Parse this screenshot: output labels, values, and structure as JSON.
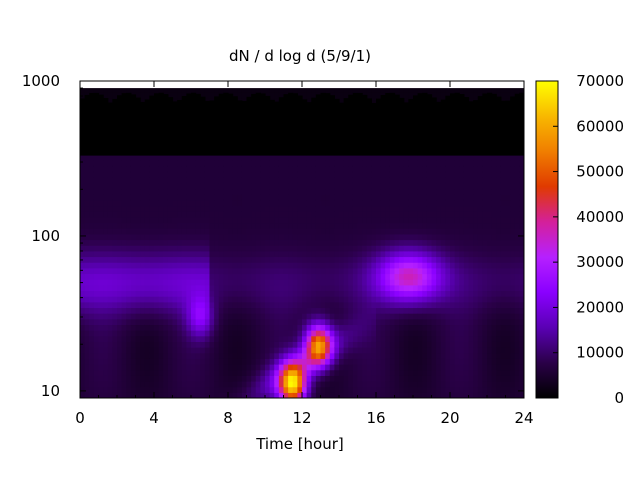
{
  "chart_data": {
    "type": "heatmap",
    "title": "dN / d log d (5/9/1)",
    "xlabel": "Time [hour]",
    "ylabel": "",
    "x_ticks": [
      "0",
      "4",
      "8",
      "12",
      "16",
      "20",
      "24"
    ],
    "y_ticks": [
      "10",
      "100",
      "1000"
    ],
    "xlim": [
      0,
      24
    ],
    "ylim": [
      9,
      1000
    ],
    "y_scale": "log",
    "colorbar": {
      "min": 0,
      "max": 70000,
      "ticks": [
        "0",
        "10000",
        "20000",
        "30000",
        "40000",
        "50000",
        "60000",
        "70000"
      ],
      "colormap": [
        "#000000",
        "#2a0048",
        "#5a00b4",
        "#8a00ff",
        "#b620ff",
        "#d4209a",
        "#e03a00",
        "#f07e00",
        "#f8b800",
        "#ffff00"
      ]
    },
    "grid": false,
    "features": [
      {
        "description": "broad background",
        "time_range": [
          0,
          24
        ],
        "diameter_range": [
          10,
          350
        ],
        "value": 6000
      },
      {
        "description": "band near 50 nm morning",
        "time_range": [
          0,
          6
        ],
        "diameter_range": [
          30,
          100
        ],
        "value": 12000
      },
      {
        "description": "small peak around 6.5 h",
        "time": 6.5,
        "diameter": 30,
        "value": 14000
      },
      {
        "description": "growth event peak",
        "time": 11.5,
        "diameter": 11,
        "value": 55000
      },
      {
        "description": "secondary peak",
        "time": 12.9,
        "diameter": 20,
        "value": 45000
      },
      {
        "description": "grown mode",
        "time": 17.8,
        "diameter": 55,
        "value": 27000
      }
    ]
  }
}
